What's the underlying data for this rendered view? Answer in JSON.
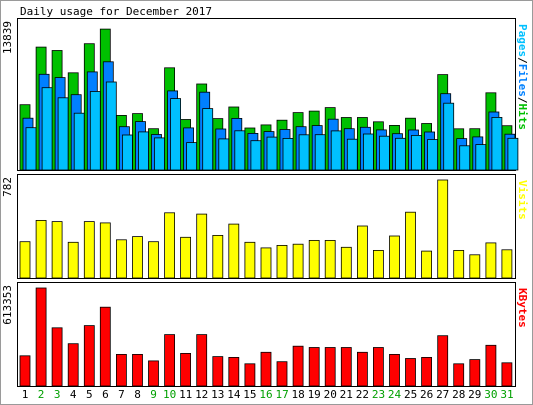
{
  "chart_data": [
    {
      "type": "bar",
      "title": "Daily usage for December 2017",
      "ylabel_right": [
        "Pages",
        "/",
        "Files",
        "/",
        "Hits"
      ],
      "ymax_label": "13839",
      "ylim": [
        0,
        13839
      ],
      "categories": [
        "1",
        "2",
        "3",
        "4",
        "5",
        "6",
        "7",
        "8",
        "9",
        "10",
        "11",
        "12",
        "13",
        "14",
        "15",
        "16",
        "17",
        "18",
        "19",
        "20",
        "21",
        "22",
        "23",
        "24",
        "25",
        "26",
        "27",
        "28",
        "29",
        "30",
        "31"
      ],
      "series": [
        {
          "name": "Hits",
          "color": "#00c000",
          "values": [
            6188,
            11651,
            11325,
            9218,
            11967,
            13351,
            5174,
            5342,
            3914,
            9683,
            4783,
            8152,
            4876,
            5976,
            3979,
            4271,
            4724,
            5444,
            5583,
            5917,
            4980,
            4980,
            4565,
            4231,
            4909,
            4409,
            9045,
            3909,
            3914,
            7319,
            4199
          ]
        },
        {
          "name": "Files",
          "color": "#0080ff",
          "values": [
            4909,
            9070,
            8757,
            7141,
            9298,
            10259,
            4105,
            4591,
            3366,
            7493,
            3993,
            7378,
            3885,
            4893,
            3470,
            3637,
            3838,
            4109,
            4208,
            4814,
            3915,
            4051,
            3805,
            3437,
            3791,
            3606,
            7234,
            2979,
            3133,
            5499,
            3397
          ]
        },
        {
          "name": "Pages",
          "color": "#00c0ff",
          "values": [
            4014,
            7803,
            6844,
            5387,
            7441,
            8346,
            3313,
            3616,
            3046,
            6766,
            2601,
            5823,
            2944,
            3720,
            2775,
            3120,
            3000,
            3340,
            3344,
            3707,
            2924,
            3410,
            3200,
            3002,
            3281,
            2891,
            6334,
            2292,
            2407,
            4987,
            3001
          ]
        }
      ]
    },
    {
      "type": "bar",
      "ylabel_right": [
        "Visits"
      ],
      "ymax_label": "782",
      "ylim": [
        0,
        782
      ],
      "categories": [
        "1",
        "2",
        "3",
        "4",
        "5",
        "6",
        "7",
        "8",
        "9",
        "10",
        "11",
        "12",
        "13",
        "14",
        "15",
        "16",
        "17",
        "18",
        "19",
        "20",
        "21",
        "22",
        "23",
        "24",
        "25",
        "26",
        "27",
        "28",
        "29",
        "30",
        "31"
      ],
      "series": [
        {
          "name": "Visits",
          "color": "#ffff00",
          "values": [
            290,
            460,
            450,
            285,
            450,
            440,
            305,
            330,
            290,
            520,
            325,
            510,
            340,
            430,
            285,
            240,
            260,
            270,
            300,
            300,
            245,
            415,
            220,
            335,
            525,
            215,
            782,
            220,
            185,
            280,
            225
          ]
        }
      ]
    },
    {
      "type": "bar",
      "ylabel_right": [
        "KBytes"
      ],
      "ymax_label": "613353",
      "ylim": [
        0,
        613353
      ],
      "categories": [
        "1",
        "2",
        "3",
        "4",
        "5",
        "6",
        "7",
        "8",
        "9",
        "10",
        "11",
        "12",
        "13",
        "14",
        "15",
        "16",
        "17",
        "18",
        "19",
        "20",
        "21",
        "22",
        "23",
        "24",
        "25",
        "26",
        "27",
        "28",
        "29",
        "30",
        "31"
      ],
      "series": [
        {
          "name": "KBytes",
          "color": "#ff0000",
          "values": [
            189000,
            613353,
            364000,
            265000,
            378000,
            493000,
            198000,
            198000,
            157000,
            322000,
            204000,
            322000,
            184000,
            179000,
            139000,
            211000,
            152000,
            249000,
            241000,
            241000,
            241000,
            211000,
            241000,
            198000,
            172000,
            179000,
            315000,
            139000,
            165000,
            255000,
            145000
          ]
        }
      ]
    }
  ],
  "day_label_color_weekday": "#000000",
  "day_label_color_weekend": "#00a000",
  "weekend_days": [
    "2",
    "3",
    "9",
    "10",
    "16",
    "17",
    "23",
    "24",
    "30",
    "31"
  ]
}
